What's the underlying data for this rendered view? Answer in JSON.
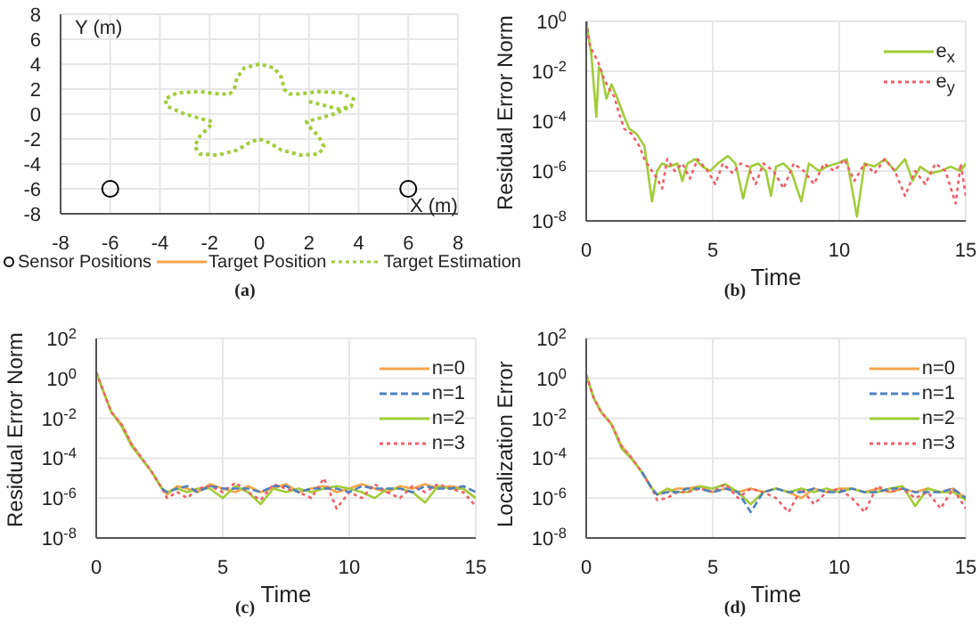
{
  "chart_data": [
    {
      "type": "line",
      "xlabel": "X (m)",
      "ylabel": "Y (m)",
      "xlim": [
        -8,
        8
      ],
      "ylim": [
        -8,
        8
      ],
      "xticks": [
        -8,
        -6,
        -4,
        -2,
        0,
        2,
        4,
        6,
        8
      ],
      "yticks": [
        -8,
        -6,
        -4,
        -2,
        0,
        2,
        4,
        6,
        8
      ],
      "grid": true,
      "legend": "bottom",
      "annotations": [
        "(a)"
      ],
      "series": [
        {
          "name": "Sensor Positions",
          "type": "scatter",
          "marker": "circle",
          "color": "#000000",
          "x": [
            -6,
            6
          ],
          "values": [
            -6,
            -6
          ]
        },
        {
          "name": "Target Position",
          "type": "line",
          "line_style": "solid",
          "color": "#f5a54a"
        },
        {
          "name": "Target Estimation",
          "type": "line",
          "line_style": "dotted",
          "color": "#a2cc3a",
          "x": [
            2,
            2.6,
            3.2,
            3.7,
            3.8,
            3.3,
            2.4,
            1.6,
            1.2,
            1,
            0.9,
            0.6,
            0,
            -0.6,
            -0.9,
            -1,
            -1.2,
            -1.6,
            -2.4,
            -3.3,
            -3.8,
            -3.7,
            -3,
            -2.3,
            -1.9,
            -2,
            -2.4,
            -2.6,
            -2.4,
            -1.7,
            -0.9,
            -0.4,
            0,
            0.4,
            0.9,
            1.7,
            2.4,
            2.6,
            2.4,
            2,
            1.9,
            2.3,
            3,
            3.7
          ],
          "values": [
            1,
            0.7,
            0.4,
            0.6,
            1.2,
            1.7,
            1.8,
            1.6,
            1.6,
            2,
            2.9,
            3.7,
            4,
            3.7,
            2.9,
            2,
            1.6,
            1.6,
            1.8,
            1.7,
            1.2,
            0.6,
            0,
            -0.4,
            -0.6,
            -1,
            -1.8,
            -2.6,
            -3.2,
            -3.3,
            -2.9,
            -2.3,
            -2,
            -2.3,
            -2.9,
            -3.3,
            -3.2,
            -2.6,
            -1.8,
            -1,
            -0.6,
            -0.4,
            0,
            0.6
          ]
        }
      ]
    },
    {
      "type": "line",
      "xlabel": "Time",
      "ylabel": "Residual Error Norm",
      "log": "y",
      "xlim": [
        0,
        15
      ],
      "ylim": [
        1e-08,
        1
      ],
      "xticks": [
        0,
        5,
        10,
        15
      ],
      "yticks": [
        {
          "value": 1e-08,
          "label": "10$^{-8}$"
        },
        {
          "value": 1e-06,
          "label": "10$^{-6}$"
        },
        {
          "value": 0.0001,
          "label": "10$^{-4}$"
        },
        {
          "value": 0.01,
          "label": "10$^{-2}$"
        },
        {
          "value": 1,
          "label": "10$^{0}$"
        }
      ],
      "grid": true,
      "legend": "top right",
      "annotations": [
        "(b)"
      ],
      "series": [
        {
          "name": "e$_{x}$",
          "line_style": "solid",
          "color": "#a2cc3a",
          "x": [
            0,
            0.2,
            0.4,
            0.5,
            0.6,
            0.8,
            1,
            1.2,
            1.5,
            1.7,
            2,
            2.3,
            2.6,
            2.8,
            3,
            3.3,
            3.6,
            3.8,
            4,
            4.3,
            4.6,
            4.9,
            5.2,
            5.6,
            5.9,
            6.2,
            6.5,
            6.8,
            7.1,
            7.3,
            7.5,
            7.8,
            8.1,
            8.5,
            8.8,
            9.2,
            9.5,
            9.9,
            10.3,
            10.7,
            11,
            11.4,
            11.8,
            12.2,
            12.6,
            12.9,
            13.2,
            13.6,
            14,
            14.4,
            14.8,
            15
          ],
          "values": [
            1,
            0.05,
            0.00015,
            0.015,
            0.01,
            0.0008,
            0.003,
            0.001,
            0.00015,
            5e-05,
            3e-05,
            1e-05,
            6e-08,
            1e-06,
            2e-06,
            1.5e-06,
            2e-06,
            4e-07,
            2e-06,
            3e-06,
            1.5e-06,
            1e-06,
            2e-06,
            4e-06,
            2e-06,
            8e-08,
            1.5e-06,
            2e-06,
            1e-06,
            1e-07,
            1.5e-06,
            2e-06,
            1e-06,
            6e-08,
            2e-06,
            1e-06,
            1.5e-06,
            2e-06,
            3e-06,
            1.5e-08,
            2e-06,
            1.5e-06,
            3e-06,
            1e-06,
            3e-06,
            4e-07,
            1.5e-06,
            8e-07,
            1e-06,
            1.5e-06,
            1e-06,
            2e-06
          ]
        },
        {
          "name": "e$_{y}$",
          "line_style": "dotted",
          "color": "#f0606a",
          "x": [
            0,
            0.15,
            0.3,
            0.5,
            0.7,
            0.9,
            1.1,
            1.3,
            1.5,
            1.8,
            2.1,
            2.3,
            2.6,
            2.8,
            3,
            3.2,
            3.5,
            3.8,
            4.1,
            4.4,
            4.8,
            5.1,
            5.4,
            5.8,
            6.1,
            6.4,
            6.7,
            7,
            7.4,
            7.8,
            8.2,
            8.6,
            9,
            9.4,
            9.8,
            10.2,
            10.6,
            11,
            11.4,
            11.8,
            12.2,
            12.6,
            13,
            13.4,
            13.8,
            14.2,
            14.6,
            14.8,
            15
          ],
          "values": [
            1,
            0.1,
            0.05,
            0.02,
            0.005,
            0.002,
            0.001,
            0.0002,
            5e-05,
            3e-05,
            1e-05,
            3e-06,
            1e-06,
            5e-07,
            2e-07,
            3e-06,
            1e-06,
            2e-06,
            5e-07,
            3e-06,
            1e-06,
            3e-07,
            2e-06,
            8e-07,
            2e-06,
            1.5e-06,
            3e-07,
            2e-06,
            1e-06,
            2e-07,
            2e-06,
            1e-06,
            3e-07,
            2e-06,
            1e-06,
            3e-06,
            4e-07,
            2e-06,
            8e-07,
            3e-06,
            1e-06,
            1e-07,
            1e-06,
            3e-07,
            2e-06,
            1e-06,
            5e-08,
            2e-06,
            1e-07
          ]
        }
      ]
    },
    {
      "type": "line",
      "xlabel": "Time",
      "ylabel": "Residual Error Norm",
      "log": "y",
      "xlim": [
        0,
        15
      ],
      "ylim": [
        1e-08,
        100
      ],
      "xticks": [
        0,
        5,
        10,
        15
      ],
      "yticks": [
        {
          "value": 1e-08,
          "label": "10$^{-8}$"
        },
        {
          "value": 1e-06,
          "label": "10$^{-6}$"
        },
        {
          "value": 0.0001,
          "label": "10$^{-4}$"
        },
        {
          "value": 0.01,
          "label": "10$^{-2}$"
        },
        {
          "value": 1,
          "label": "10$^{0}$"
        },
        {
          "value": 100,
          "label": "10$^{2}$"
        }
      ],
      "grid": true,
      "legend": "top right",
      "annotations": [
        "(c)"
      ],
      "x": [
        0,
        0.3,
        0.6,
        1,
        1.4,
        1.8,
        2.2,
        2.6,
        2.8,
        3.2,
        3.6,
        4,
        4.5,
        5,
        5.5,
        6,
        6.5,
        7,
        7.5,
        8,
        8.5,
        9,
        9.5,
        10,
        10.5,
        11,
        11.5,
        12,
        12.5,
        13,
        13.5,
        14,
        14.5,
        15
      ],
      "series": [
        {
          "name": "n=0",
          "line_style": "solid",
          "color": "#f5a54a",
          "values": [
            2,
            0.2,
            0.02,
            0.005,
            0.0005,
            0.0001,
            2e-05,
            3e-06,
            1.5e-06,
            4e-06,
            3e-06,
            2e-06,
            5e-06,
            3e-06,
            2e-06,
            4e-06,
            2e-06,
            3e-06,
            5e-06,
            2e-06,
            3e-06,
            4e-06,
            2e-06,
            3e-06,
            5e-06,
            3e-06,
            2e-06,
            4e-06,
            3e-06,
            5e-06,
            3e-06,
            4e-06,
            3e-06,
            1e-06
          ]
        },
        {
          "name": "n=1",
          "line_style": "dashed",
          "color": "#4f81bd",
          "values": [
            null,
            null,
            null,
            null,
            null,
            null,
            null,
            3e-06,
            2e-06,
            3e-06,
            4e-06,
            2e-06,
            4e-06,
            3e-06,
            3e-06,
            3e-06,
            2e-06,
            4e-06,
            4e-06,
            2e-06,
            3e-06,
            3e-06,
            3e-06,
            2e-06,
            4e-06,
            3e-06,
            3e-06,
            3e-06,
            2e-06,
            4e-06,
            3e-06,
            3e-06,
            4e-06,
            2e-06
          ]
        },
        {
          "name": "n=2",
          "line_style": "solid",
          "color": "#a2cc3a",
          "values": [
            2,
            0.2,
            0.02,
            0.004,
            0.0004,
            9e-05,
            2e-05,
            3e-06,
            2e-06,
            3e-06,
            2e-06,
            3e-06,
            3e-06,
            1e-06,
            4e-06,
            2e-06,
            5e-07,
            3e-06,
            2e-06,
            3e-06,
            2e-06,
            3e-06,
            4e-06,
            3e-06,
            2e-06,
            1e-06,
            3e-06,
            3e-06,
            2e-06,
            6e-07,
            4e-06,
            3e-06,
            3e-06,
            1e-06
          ]
        },
        {
          "name": "n=3",
          "line_style": "dotted",
          "color": "#f0606a",
          "values": [
            2,
            0.2,
            0.02,
            0.005,
            0.0005,
            0.0001,
            2e-05,
            3e-06,
            1e-06,
            2e-06,
            1e-06,
            3e-06,
            4e-06,
            2e-06,
            6e-06,
            2e-06,
            8e-07,
            5e-06,
            3e-06,
            2e-06,
            1e-06,
            1e-05,
            3e-07,
            2e-06,
            1e-06,
            5e-06,
            2e-06,
            1e-06,
            4e-06,
            2e-06,
            5e-06,
            3e-06,
            2e-06,
            4e-07
          ]
        }
      ]
    },
    {
      "type": "line",
      "xlabel": "Time",
      "ylabel": "Localization Error",
      "log": "y",
      "xlim": [
        0,
        15
      ],
      "ylim": [
        1e-08,
        100
      ],
      "xticks": [
        0,
        5,
        10,
        15
      ],
      "yticks": [
        {
          "value": 1e-08,
          "label": "10$^{-8}$"
        },
        {
          "value": 1e-06,
          "label": "10$^{-6}$"
        },
        {
          "value": 0.0001,
          "label": "10$^{-4}$"
        },
        {
          "value": 0.01,
          "label": "10$^{-2}$"
        },
        {
          "value": 1,
          "label": "10$^{0}$"
        },
        {
          "value": 100,
          "label": "10$^{2}$"
        }
      ],
      "grid": true,
      "legend": "top right",
      "annotations": [
        "(d)"
      ],
      "x": [
        0,
        0.3,
        0.6,
        1,
        1.4,
        1.8,
        2.2,
        2.6,
        2.8,
        3.2,
        3.6,
        4,
        4.5,
        5,
        5.5,
        6,
        6.5,
        7,
        7.5,
        8,
        8.5,
        9,
        9.5,
        10,
        10.5,
        11,
        11.5,
        12,
        12.5,
        13,
        13.5,
        14,
        14.5,
        15
      ],
      "series": [
        {
          "name": "n=0",
          "line_style": "solid",
          "color": "#f5a54a",
          "values": [
            1.5,
            0.1,
            0.02,
            0.005,
            0.0004,
            0.0001,
            2e-05,
            3e-06,
            1.5e-06,
            2e-06,
            3e-06,
            3e-06,
            4e-06,
            2e-06,
            3e-06,
            2e-06,
            3e-06,
            2e-06,
            3e-06,
            2e-06,
            1e-06,
            3e-06,
            2e-06,
            3e-06,
            3e-06,
            2e-06,
            3e-06,
            2e-06,
            3e-06,
            2e-06,
            3e-06,
            2e-06,
            3e-06,
            1e-06
          ]
        },
        {
          "name": "n=1",
          "line_style": "dashed",
          "color": "#4f81bd",
          "values": [
            null,
            null,
            null,
            null,
            null,
            null,
            2e-05,
            3e-06,
            1.5e-06,
            2e-06,
            2e-06,
            3e-06,
            3e-06,
            2e-06,
            3e-06,
            2e-06,
            2e-07,
            2e-06,
            3e-06,
            2e-06,
            2e-06,
            3e-06,
            2e-06,
            2e-06,
            3e-06,
            2e-06,
            2e-06,
            3e-06,
            3e-06,
            2e-06,
            2e-06,
            2e-06,
            3e-06,
            1e-06
          ]
        },
        {
          "name": "n=2",
          "line_style": "solid",
          "color": "#a2cc3a",
          "values": [
            1.5,
            0.1,
            0.02,
            0.005,
            0.0003,
            9e-05,
            2e-05,
            3e-06,
            1.5e-06,
            3e-06,
            2e-06,
            2e-06,
            4e-06,
            3e-06,
            5e-06,
            2e-06,
            5e-07,
            2e-06,
            3e-06,
            2e-06,
            3e-06,
            2e-06,
            3e-06,
            2e-06,
            3e-06,
            2e-06,
            2e-06,
            3e-06,
            4e-06,
            4e-07,
            3e-06,
            2e-06,
            2e-06,
            8e-07
          ]
        },
        {
          "name": "n=3",
          "line_style": "dotted",
          "color": "#f0606a",
          "values": [
            1.5,
            0.1,
            0.02,
            0.005,
            0.0004,
            0.0001,
            2e-05,
            3e-06,
            8e-07,
            1e-06,
            2e-06,
            2e-06,
            3e-06,
            2e-06,
            5e-06,
            1e-06,
            3e-06,
            2e-06,
            1e-06,
            2e-07,
            3e-06,
            5e-07,
            2e-06,
            3e-06,
            1e-06,
            2e-07,
            4e-06,
            2e-06,
            3e-06,
            1e-06,
            2e-06,
            3e-07,
            3e-06,
            3e-07
          ]
        }
      ]
    }
  ]
}
